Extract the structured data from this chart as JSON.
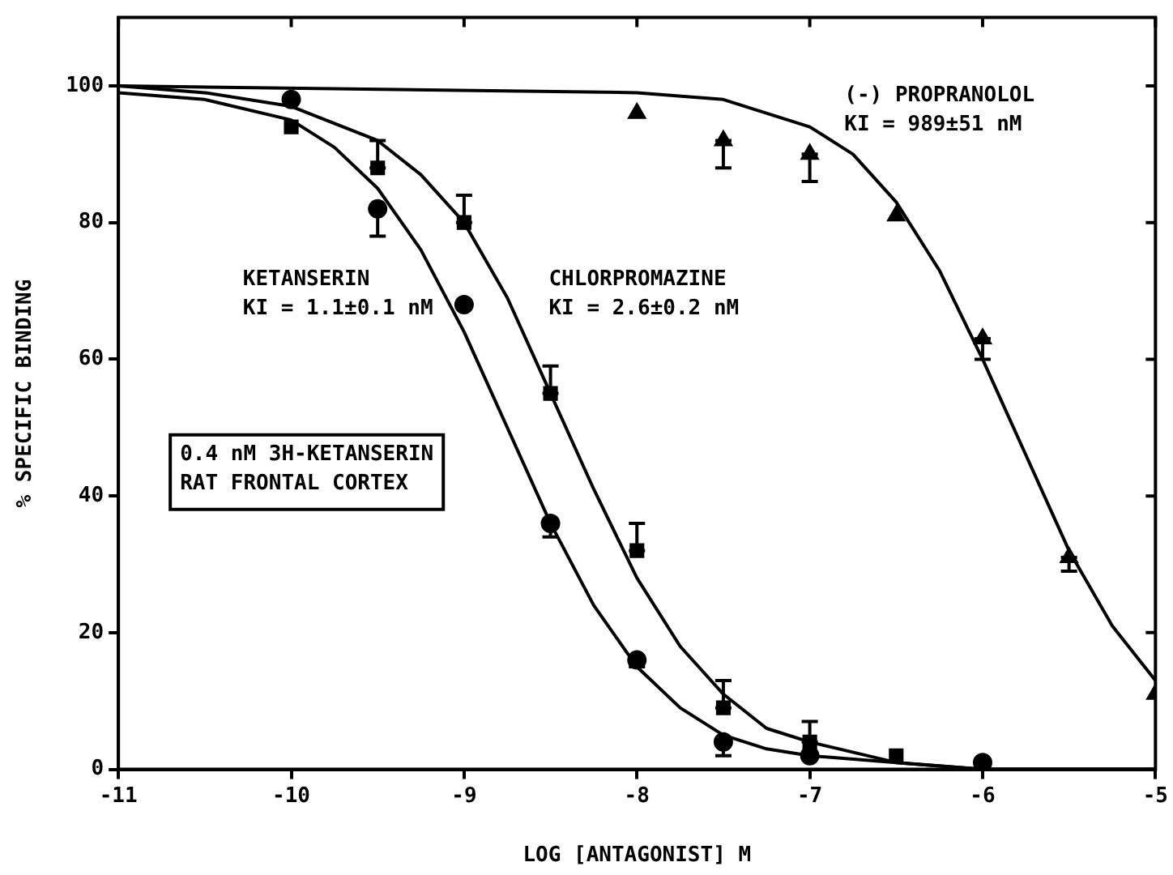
{
  "chart_data": {
    "type": "scatter",
    "xlabel": "LOG [ANTAGONIST] M",
    "ylabel": "% SPECIFIC BINDING",
    "xlim": [
      -11,
      -5
    ],
    "xticks": [
      -11,
      -10,
      -9,
      -8,
      -7,
      -6,
      -5
    ],
    "ylim": [
      0,
      110
    ],
    "yticks": [
      0,
      20,
      40,
      60,
      80,
      100
    ],
    "grid": false,
    "legend": false,
    "series": [
      {
        "marker": "circle",
        "color": "#000000",
        "x": [
          -10,
          -9.5,
          -9,
          -8.5,
          -8,
          -7.5,
          -7,
          -6
        ],
        "values": [
          98,
          82,
          68,
          36,
          16,
          4,
          2,
          1
        ],
        "errors": [
          null,
          [
            78,
            82
          ],
          null,
          [
            34,
            36
          ],
          [
            15,
            16
          ],
          [
            2,
            4
          ],
          null,
          null
        ]
      },
      {
        "marker": "square",
        "color": "#000000",
        "x": [
          -10,
          -9.5,
          -9,
          -8.5,
          -8,
          -7.5,
          -7,
          -6.5
        ],
        "values": [
          94,
          88,
          80,
          55,
          32,
          9,
          4,
          2
        ],
        "errors": [
          null,
          [
            88,
            92
          ],
          [
            80,
            84
          ],
          [
            55,
            59
          ],
          [
            32,
            36
          ],
          [
            9,
            13
          ],
          [
            4,
            7
          ],
          null
        ]
      },
      {
        "marker": "triangle",
        "color": "#000000",
        "x": [
          -8,
          -7.5,
          -7,
          -6.5,
          -6,
          -5.5,
          -5
        ],
        "values": [
          96,
          92,
          90,
          81,
          63,
          31,
          11
        ],
        "errors": [
          null,
          [
            88,
            92
          ],
          [
            86,
            90
          ],
          null,
          [
            60,
            63
          ],
          [
            29,
            31
          ],
          null
        ]
      },
      {
        "type": "line",
        "marker": "none",
        "color": "#000000",
        "x": [
          -11,
          -10.5,
          -10,
          -9.75,
          -9.5,
          -9.25,
          -9,
          -8.75,
          -8.5,
          -8.25,
          -8,
          -7.75,
          -7.5,
          -7.25,
          -7,
          -6.5,
          -6,
          -5
        ],
        "values": [
          99,
          98,
          95,
          91,
          85,
          76,
          64,
          50,
          36,
          24,
          15,
          9,
          5,
          3,
          2,
          1,
          0,
          0
        ]
      },
      {
        "type": "line",
        "marker": "none",
        "color": "#000000",
        "x": [
          -11,
          -10.5,
          -10,
          -9.5,
          -9.25,
          -9,
          -8.75,
          -8.5,
          -8.25,
          -8,
          -7.75,
          -7.5,
          -7.25,
          -7,
          -6.5,
          -6,
          -5
        ],
        "values": [
          100,
          99,
          97,
          92,
          87,
          80,
          69,
          55,
          41,
          28,
          18,
          11,
          6,
          4,
          1,
          0,
          0
        ]
      },
      {
        "type": "line",
        "marker": "none",
        "color": "#000000",
        "x": [
          -11,
          -8,
          -7.5,
          -7,
          -6.75,
          -6.5,
          -6.25,
          -6,
          -5.75,
          -5.5,
          -5.25,
          -5
        ],
        "values": [
          100,
          99,
          98,
          94,
          90,
          83,
          73,
          60,
          46,
          32,
          21,
          13
        ]
      }
    ],
    "annotations": [
      "KETANSERIN\nKI = 1.1±0.1 nM",
      "CHLORPROMAZINE\nKI = 2.6±0.2 nM",
      "(-) PROPRANOLOL\nKI = 989±51 nM",
      "0.4 nM 3H-KETANSERIN\nRAT FRONTAL CORTEX"
    ]
  }
}
